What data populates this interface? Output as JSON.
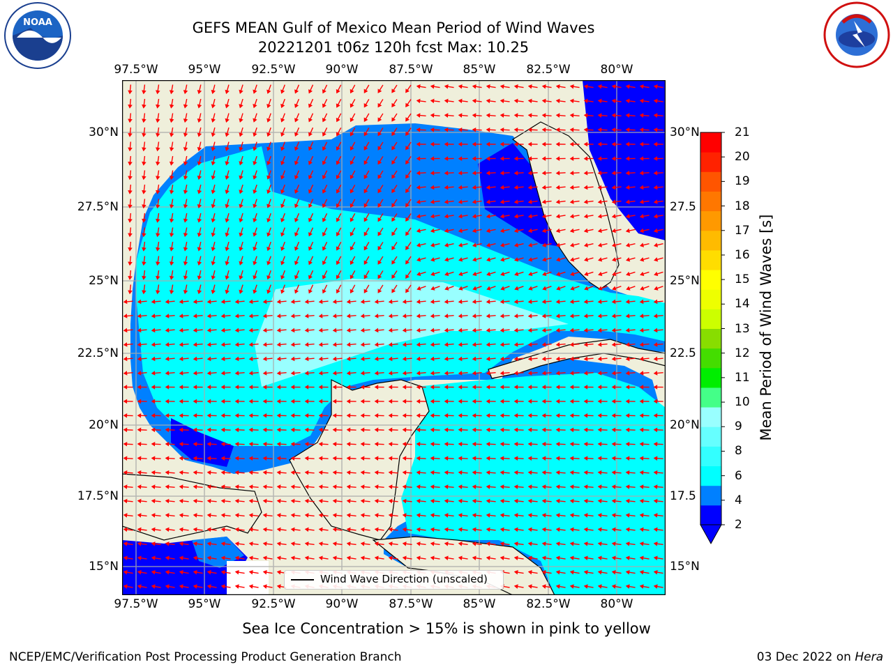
{
  "title": {
    "line1": "GEFS MEAN Gulf of Mexico Mean Period of Wind Waves",
    "line2": "20221201 t06z 120h fcst   Max: 10.25"
  },
  "axes": {
    "lon_labels": [
      "97.5°W",
      "95°W",
      "92.5°W",
      "90°W",
      "87.5°W",
      "85°W",
      "82.5°W",
      "80°W"
    ],
    "lat_labels_left": [
      "30°N",
      "27.5°N",
      "25°N",
      "22.5°N",
      "20°N",
      "17.5°N",
      "15°N"
    ],
    "lat_labels_right": [
      "30°N",
      "27.5",
      "25°N",
      "22.5",
      "20°N",
      "17.5",
      "15°N"
    ]
  },
  "colorbar": {
    "label": "Mean Period of Wind Waves [s]",
    "ticks": [
      "2",
      "4",
      "6",
      "8",
      "9",
      "10",
      "11",
      "12",
      "13",
      "14",
      "15",
      "16",
      "17",
      "18",
      "19",
      "20",
      "21"
    ],
    "colors": [
      "#0000ff",
      "#0080ff",
      "#00ffff",
      "#33ffff",
      "#66ffff",
      "#99ffff",
      "#44ff88",
      "#00ee00",
      "#44dd00",
      "#88dd00",
      "#ccff00",
      "#eeff00",
      "#ffff00",
      "#ffdd00",
      "#ffbb00",
      "#ff9900",
      "#ff7700",
      "#ff5500",
      "#ff2200",
      "#ff0000"
    ]
  },
  "legend": {
    "label": "Wind Wave Direction (unscaled)"
  },
  "map_colors": {
    "land": "#efefdb",
    "ocean_light": "#00ffff",
    "ocean_mid": "#0080ff",
    "ocean_dark": "#0000ff",
    "arrow": "#ff0000"
  },
  "logos": {
    "left": "NOAA",
    "right": "NATIONAL WEATHER SERVICE"
  },
  "footer": {
    "note": "Sea Ice Concentration > 15% is shown in pink to yellow",
    "left": "NCEP/EMC/Verification Post Processing Product Generation Branch",
    "right_date": "03 Dec 2022 on ",
    "right_host": "Hera"
  }
}
